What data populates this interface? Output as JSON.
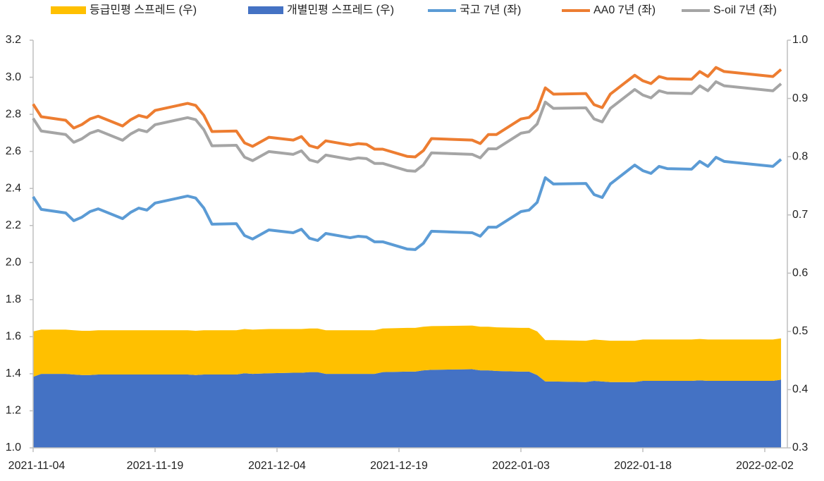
{
  "chart_data": {
    "type": "combo",
    "x": [
      "2021-11-04",
      "2021-11-05",
      "2021-11-08",
      "2021-11-09",
      "2021-11-10",
      "2021-11-11",
      "2021-11-12",
      "2021-11-15",
      "2021-11-16",
      "2021-11-17",
      "2021-11-18",
      "2021-11-19",
      "2021-11-23",
      "2021-11-24",
      "2021-11-25",
      "2021-11-26",
      "2021-11-29",
      "2021-11-30",
      "2021-12-01",
      "2021-12-03",
      "2021-12-06",
      "2021-12-07",
      "2021-12-08",
      "2021-12-09",
      "2021-12-10",
      "2021-12-13",
      "2021-12-14",
      "2021-12-15",
      "2021-12-16",
      "2021-12-17",
      "2021-12-20",
      "2021-12-21",
      "2021-12-22",
      "2021-12-23",
      "2021-12-28",
      "2021-12-29",
      "2021-12-30",
      "2021-12-31",
      "2022-01-03",
      "2022-01-04",
      "2022-01-05",
      "2022-01-06",
      "2022-01-07",
      "2022-01-11",
      "2022-01-12",
      "2022-01-13",
      "2022-01-14",
      "2022-01-17",
      "2022-01-18",
      "2022-01-19",
      "2022-01-20",
      "2022-01-21",
      "2022-01-24",
      "2022-01-25",
      "2022-01-26",
      "2022-01-27",
      "2022-01-28",
      "2022-02-03",
      "2022-02-04"
    ],
    "xticks": [
      "2021-11-04",
      "2021-11-19",
      "2021-12-04",
      "2021-12-19",
      "2022-01-03",
      "2022-01-18",
      "2022-02-02"
    ],
    "ylim": [
      1.0,
      3.2
    ],
    "yticks": [
      {
        "value": 1.0,
        "label": "1.0"
      },
      1.2,
      1.4,
      1.6,
      1.8,
      {
        "value": 2.0,
        "label": "2.0"
      },
      2.2,
      2.4,
      2.6,
      2.8,
      {
        "value": 3.0,
        "label": "3.0"
      },
      3.2
    ],
    "y2lim": [
      0.3,
      1.0
    ],
    "y2ticks": [
      0.3,
      0.4,
      0.5,
      0.6,
      0.7,
      0.8,
      0.9,
      {
        "value": 1.0,
        "label": "1.0"
      }
    ],
    "series": [
      {
        "name": "등급민평 스프레드 (우)",
        "type": "area",
        "axis": "y2",
        "color": "#FFC000",
        "values": [
          0.078,
          0.076,
          0.076,
          0.076,
          0.076,
          0.076,
          0.076,
          0.076,
          0.076,
          0.076,
          0.076,
          0.076,
          0.076,
          0.076,
          0.076,
          0.076,
          0.076,
          0.076,
          0.076,
          0.076,
          0.075,
          0.075,
          0.075,
          0.075,
          0.075,
          0.075,
          0.075,
          0.075,
          0.075,
          0.075,
          0.075,
          0.075,
          0.075,
          0.075,
          0.075,
          0.075,
          0.075,
          0.075,
          0.075,
          0.075,
          0.075,
          0.071,
          0.071,
          0.071,
          0.071,
          0.071,
          0.071,
          0.071,
          0.071,
          0.071,
          0.071,
          0.071,
          0.071,
          0.071,
          0.071,
          0.071,
          0.071,
          0.071,
          0.071
        ]
      },
      {
        "name": "개별민평 스프레드 (우)",
        "type": "area",
        "axis": "y2",
        "color": "#4472C4",
        "values": [
          0.422,
          0.427,
          0.427,
          0.426,
          0.425,
          0.425,
          0.426,
          0.426,
          0.426,
          0.426,
          0.426,
          0.426,
          0.426,
          0.425,
          0.426,
          0.426,
          0.426,
          0.428,
          0.427,
          0.428,
          0.429,
          0.429,
          0.43,
          0.43,
          0.427,
          0.427,
          0.427,
          0.427,
          0.427,
          0.43,
          0.431,
          0.431,
          0.433,
          0.434,
          0.435,
          0.433,
          0.433,
          0.432,
          0.431,
          0.431,
          0.425,
          0.414,
          0.414,
          0.413,
          0.415,
          0.414,
          0.413,
          0.413,
          0.415,
          0.415,
          0.415,
          0.415,
          0.415,
          0.416,
          0.415,
          0.415,
          0.415,
          0.415,
          0.417
        ]
      },
      {
        "name": "국고 7년 (좌)",
        "type": "line",
        "color": "#5B9BD5",
        "values": [
          2.355,
          2.287,
          2.268,
          2.226,
          2.245,
          2.275,
          2.29,
          2.237,
          2.271,
          2.294,
          2.283,
          2.321,
          2.359,
          2.348,
          2.294,
          2.207,
          2.21,
          2.146,
          2.127,
          2.176,
          2.161,
          2.18,
          2.131,
          2.119,
          2.157,
          2.134,
          2.142,
          2.138,
          2.112,
          2.112,
          2.073,
          2.07,
          2.104,
          2.169,
          2.161,
          2.142,
          2.191,
          2.191,
          2.275,
          2.283,
          2.325,
          2.458,
          2.424,
          2.427,
          2.367,
          2.351,
          2.424,
          2.526,
          2.496,
          2.481,
          2.519,
          2.507,
          2.504,
          2.546,
          2.519,
          2.568,
          2.546,
          2.519,
          2.557
        ]
      },
      {
        "name": "AA0 7년 (좌)",
        "type": "line",
        "color": "#ED7D31",
        "values": [
          2.855,
          2.787,
          2.768,
          2.726,
          2.745,
          2.775,
          2.79,
          2.737,
          2.771,
          2.794,
          2.783,
          2.821,
          2.859,
          2.848,
          2.794,
          2.707,
          2.71,
          2.646,
          2.627,
          2.676,
          2.661,
          2.68,
          2.631,
          2.619,
          2.657,
          2.634,
          2.642,
          2.638,
          2.612,
          2.612,
          2.573,
          2.57,
          2.604,
          2.669,
          2.661,
          2.642,
          2.691,
          2.691,
          2.775,
          2.783,
          2.825,
          2.943,
          2.909,
          2.912,
          2.852,
          2.836,
          2.909,
          3.011,
          2.981,
          2.966,
          3.004,
          2.992,
          2.989,
          3.031,
          3.004,
          3.053,
          3.031,
          3.004,
          3.042
        ]
      },
      {
        "name": "S-oil 7년 (좌)",
        "type": "line",
        "color": "#A5A5A5",
        "values": [
          2.778,
          2.71,
          2.691,
          2.649,
          2.668,
          2.698,
          2.713,
          2.66,
          2.694,
          2.717,
          2.706,
          2.744,
          2.782,
          2.771,
          2.717,
          2.63,
          2.633,
          2.569,
          2.55,
          2.599,
          2.584,
          2.603,
          2.554,
          2.542,
          2.58,
          2.557,
          2.565,
          2.561,
          2.535,
          2.535,
          2.496,
          2.493,
          2.527,
          2.592,
          2.584,
          2.565,
          2.614,
          2.614,
          2.698,
          2.706,
          2.748,
          2.866,
          2.832,
          2.835,
          2.775,
          2.759,
          2.832,
          2.934,
          2.904,
          2.889,
          2.927,
          2.915,
          2.912,
          2.954,
          2.927,
          2.976,
          2.954,
          2.927,
          2.965
        ]
      }
    ]
  }
}
